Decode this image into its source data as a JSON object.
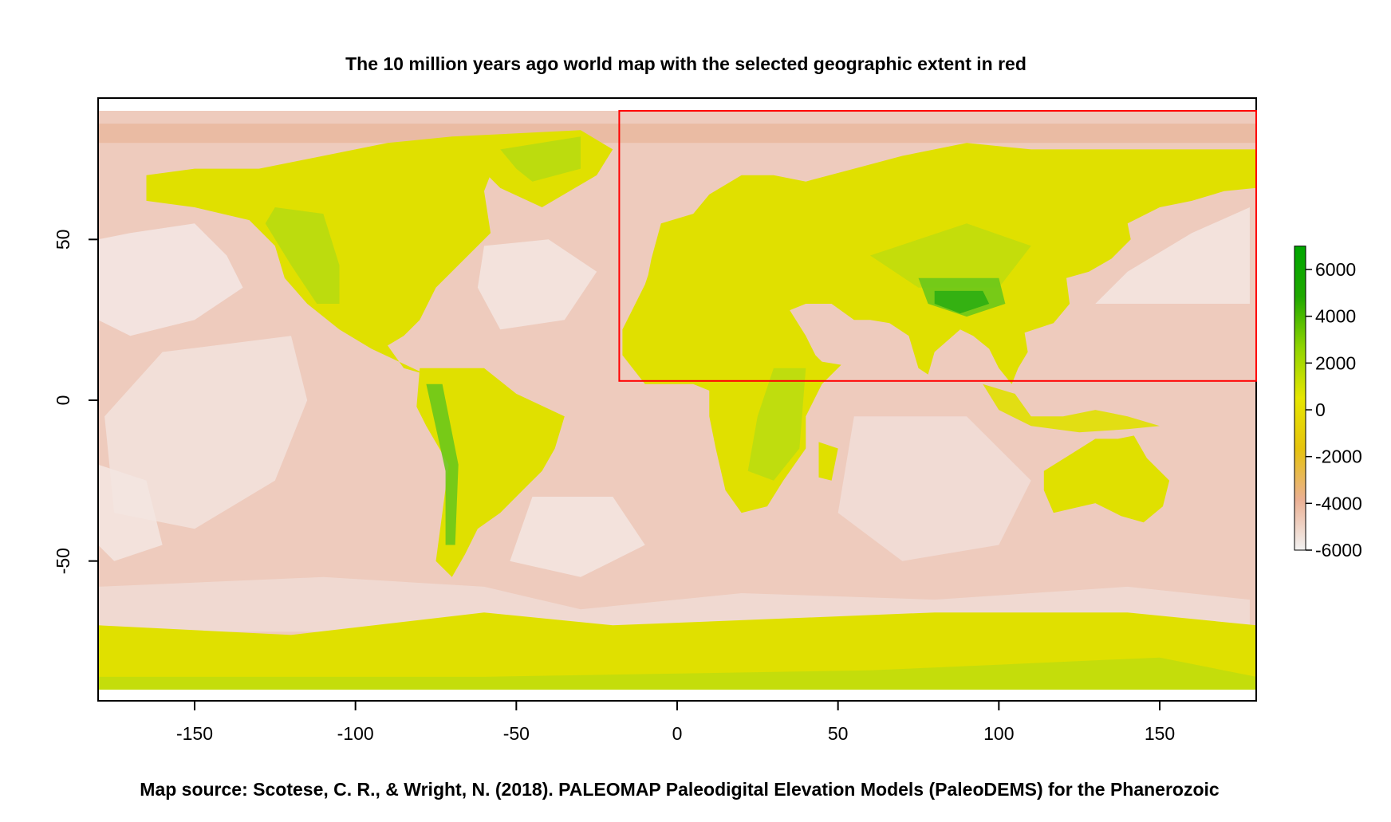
{
  "title": "The 10 million years ago world map with the selected geographic extent in red",
  "caption": "Map source: Scotese, C. R., & Wright, N. (2018). PALEOMAP Paleodigital Elevation Models (PaleoDEMS) for the Phanerozoic",
  "map": {
    "x_range": [
      -180,
      180
    ],
    "y_range": [
      -90,
      90
    ],
    "x_ticks": [
      "-150",
      "-100",
      "-50",
      "0",
      "50",
      "100",
      "150"
    ],
    "y_ticks": [
      "50",
      "0",
      "-50"
    ],
    "selected_extent": {
      "xmin": -18,
      "xmax": 180,
      "ymin": 6,
      "ymax": 90,
      "color": "#ff0000"
    }
  },
  "legend": {
    "labels": [
      "6000",
      "4000",
      "2000",
      "0",
      "-2000",
      "-4000",
      "-6000"
    ],
    "min": -6000,
    "max": 7000,
    "colors": [
      "#f2f2f2",
      "#ebb093",
      "#e6c30d",
      "#e6e600",
      "#8fd400",
      "#1fa800",
      "#00a600"
    ]
  },
  "palette": {
    "deep_ocean": "#f3e6e2",
    "ocean": "#eecbbd",
    "shelf": "#e9b69c",
    "lowland": "#e0e000",
    "upland": "#b8dc10",
    "highland": "#6cc819",
    "peak": "#2cae12"
  }
}
